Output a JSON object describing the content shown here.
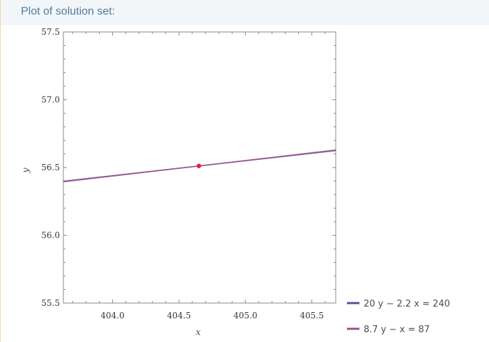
{
  "pod": {
    "title": "Plot of solution set:"
  },
  "chart_data": {
    "type": "line",
    "title": "",
    "xlabel": "x",
    "ylabel": "y",
    "xlim": [
      403.63,
      405.68
    ],
    "ylim": [
      55.5,
      57.5
    ],
    "x_ticks": [
      "404.0",
      "404.5",
      "405.0",
      "405.5"
    ],
    "x_tick_values": [
      404.0,
      404.5,
      405.0,
      405.5
    ],
    "y_ticks": [
      "55.5",
      "56.0",
      "56.5",
      "57.0",
      "57.5"
    ],
    "y_tick_values": [
      55.5,
      56.0,
      56.5,
      57.0,
      57.5
    ],
    "series": [
      {
        "name": "20 y − 2.2 x = 240",
        "x": [
          403.63,
          405.68
        ],
        "y": [
          56.3993,
          56.6248
        ],
        "color": "#5a4e9e"
      },
      {
        "name": "8.7 y − x = 87",
        "x": [
          403.63,
          405.68
        ],
        "y": [
          56.3943,
          56.6299
        ],
        "color": "#a64d8b"
      }
    ],
    "points": [
      {
        "x": 404.65,
        "y": 56.5115,
        "color": "#e8222a"
      }
    ],
    "legend_position": "bottom-right",
    "grid": false
  }
}
